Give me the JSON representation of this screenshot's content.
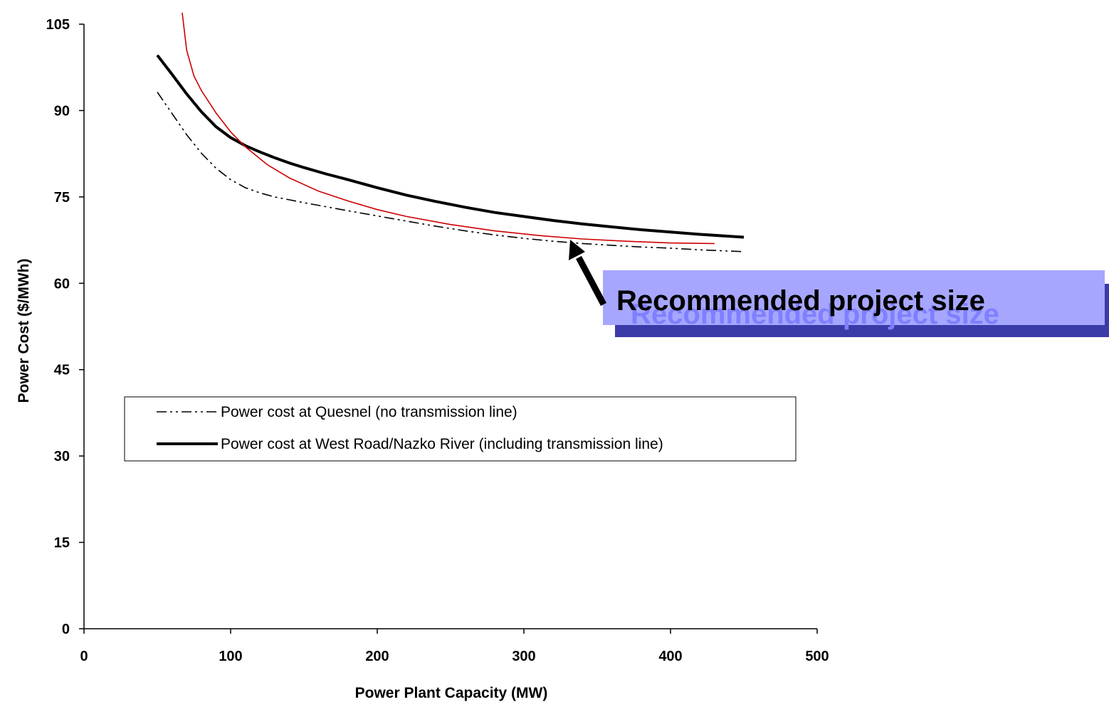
{
  "chart_data": {
    "type": "line",
    "title": "",
    "xlabel": "Power Plant Capacity (MW)",
    "ylabel": "Power Cost ($/MWh)",
    "xlim": [
      0,
      500
    ],
    "ylim": [
      0,
      105
    ],
    "xticks": [
      "0",
      "100",
      "200",
      "300",
      "400",
      "500"
    ],
    "yticks": [
      "0",
      "15",
      "30",
      "45",
      "60",
      "75",
      "90",
      "105"
    ],
    "grid": false,
    "legend_position": "lower-left",
    "series": [
      {
        "name": "Power cost at Quesnel (no transmission line)",
        "style": "dash-dot",
        "color": "#000000",
        "x": [
          50,
          60,
          70,
          80,
          90,
          100,
          110,
          120,
          130,
          140,
          150,
          165,
          180,
          200,
          220,
          240,
          260,
          280,
          300,
          320,
          340,
          360,
          380,
          400,
          420,
          450
        ],
        "y": [
          93.2,
          89.5,
          85.8,
          82.6,
          80.0,
          78.0,
          76.6,
          75.7,
          75.0,
          74.5,
          74.0,
          73.3,
          72.6,
          71.7,
          70.8,
          69.9,
          69.1,
          68.4,
          67.8,
          67.3,
          66.9,
          66.6,
          66.3,
          66.1,
          65.8,
          65.5
        ]
      },
      {
        "name": "Power cost at West Road/Nazko River (including transmission line)",
        "style": "solid",
        "color": "#000000",
        "x": [
          50,
          60,
          70,
          80,
          90,
          100,
          110,
          120,
          130,
          140,
          150,
          165,
          180,
          200,
          220,
          240,
          260,
          280,
          300,
          320,
          340,
          360,
          380,
          400,
          420,
          450
        ],
        "y": [
          99.6,
          96.3,
          92.9,
          89.8,
          87.2,
          85.3,
          83.9,
          82.8,
          81.8,
          80.9,
          80.1,
          79.0,
          78.0,
          76.6,
          75.3,
          74.2,
          73.2,
          72.3,
          71.6,
          70.9,
          70.3,
          69.8,
          69.3,
          68.9,
          68.5,
          68.0
        ]
      },
      {
        "name": "",
        "style": "solid-thin",
        "color": "#cc0000",
        "x": [
          67,
          70,
          75,
          80,
          90,
          100,
          110,
          125,
          140,
          160,
          180,
          200,
          220,
          250,
          280,
          310,
          340,
          370,
          400,
          430
        ],
        "y": [
          107,
          100.5,
          96.0,
          93.5,
          89.6,
          86.3,
          83.7,
          80.6,
          78.3,
          76.0,
          74.3,
          72.8,
          71.6,
          70.2,
          69.1,
          68.3,
          67.7,
          67.3,
          67.0,
          66.9
        ]
      }
    ],
    "annotations": [
      {
        "text": "Recommended project size",
        "arrow_to": [
          330,
          66.9
        ]
      }
    ]
  },
  "colors": {
    "callout_box": "#a6a6ff",
    "callout_shadow": "#3a3aa8",
    "callout_ghost_text": "#7f7fff"
  }
}
